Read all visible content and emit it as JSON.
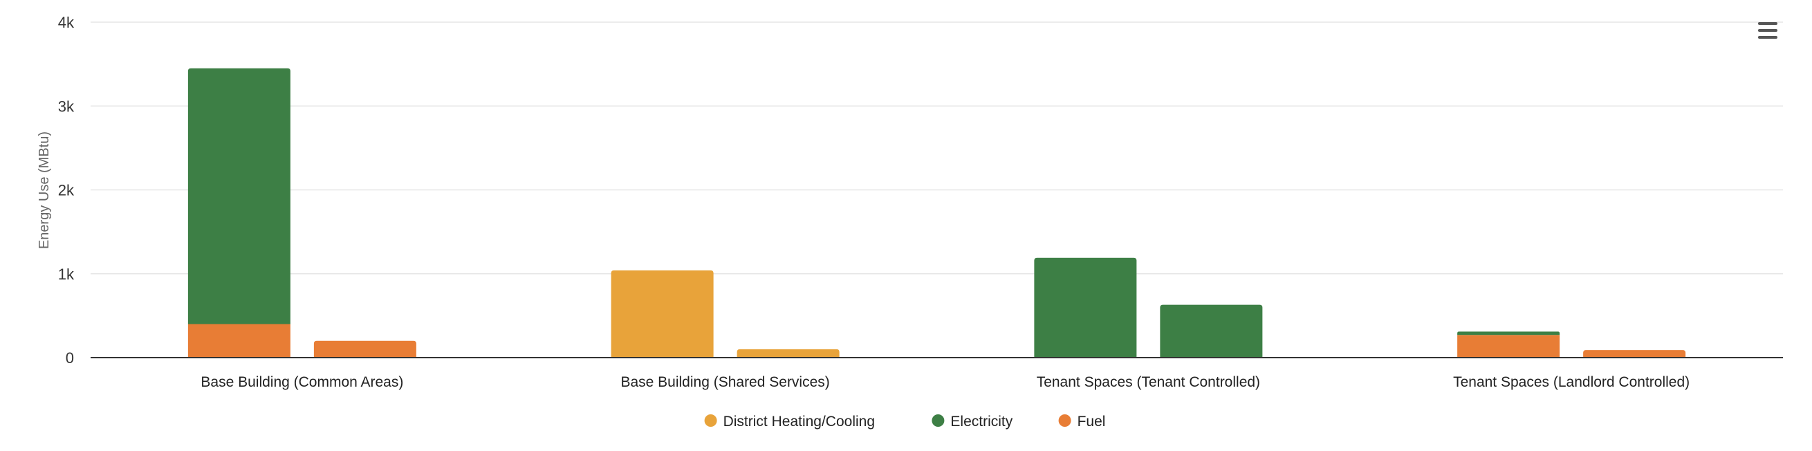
{
  "chart_data": {
    "type": "bar",
    "stacked": true,
    "categories": [
      "Base Building (Common Areas)",
      "Base Building (Shared Services)",
      "Tenant Spaces (Tenant Controlled)",
      "Tenant Spaces (Landlord Controlled)"
    ],
    "bars_per_category": 2,
    "ylabel": "Energy Use (MBtu)",
    "ylim": [
      0,
      4000
    ],
    "yticks": [
      {
        "value": 0,
        "label": "0"
      },
      {
        "value": 1000,
        "label": "1k"
      },
      {
        "value": 2000,
        "label": "2k"
      },
      {
        "value": 3000,
        "label": "3k"
      },
      {
        "value": 4000,
        "label": "4k"
      }
    ],
    "grid": true,
    "legend_position": "bottom-center",
    "series": [
      {
        "name": "District Heating/Cooling",
        "color": "#e8a33a",
        "values": [
          [
            0,
            0
          ],
          [
            1040,
            100
          ],
          [
            0,
            0
          ],
          [
            0,
            0
          ]
        ]
      },
      {
        "name": "Electricity",
        "color": "#3d7f45",
        "values": [
          [
            3050,
            0
          ],
          [
            0,
            0
          ],
          [
            1190,
            630
          ],
          [
            40,
            0
          ]
        ]
      },
      {
        "name": "Fuel",
        "color": "#e87d35",
        "values": [
          [
            400,
            200
          ],
          [
            0,
            0
          ],
          [
            0,
            0
          ],
          [
            270,
            90
          ]
        ]
      }
    ],
    "stack_order_bottom_to_top": [
      "Fuel",
      "District Heating/Cooling",
      "Electricity"
    ]
  },
  "menu": {
    "icon": "hamburger-menu-icon"
  }
}
